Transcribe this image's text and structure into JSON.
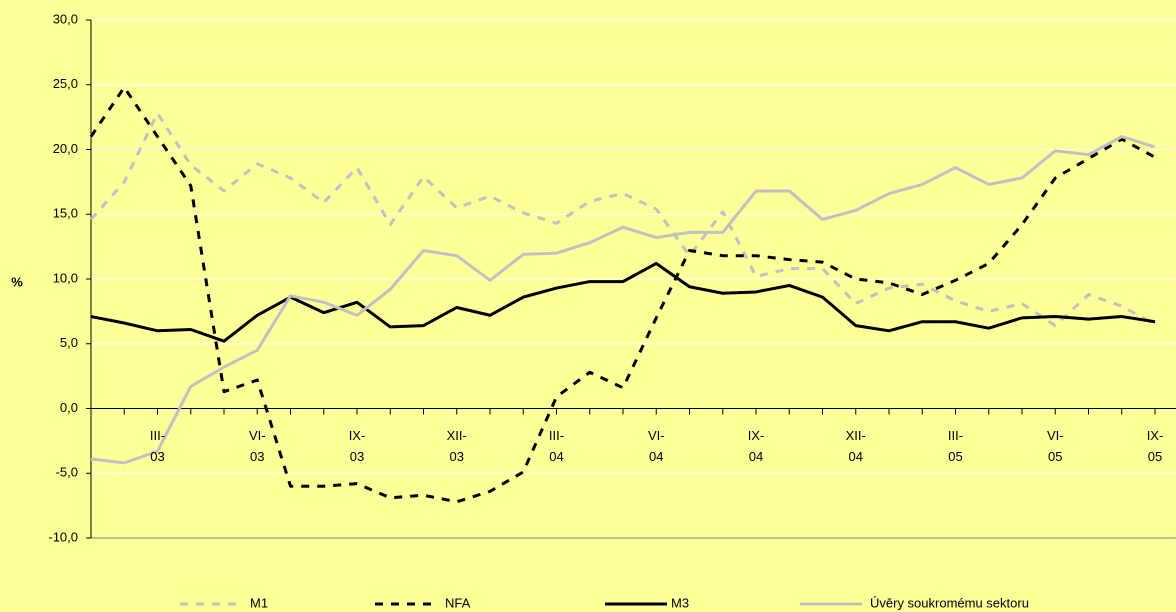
{
  "chart_data": {
    "type": "line",
    "y_label": "%",
    "categories": [
      null,
      null,
      "III-\n03",
      null,
      null,
      "VI-\n03",
      null,
      null,
      "IX-\n03",
      null,
      null,
      "XII-\n03",
      null,
      null,
      "III-\n04",
      null,
      null,
      "VI-\n04",
      null,
      null,
      "IX-\n04",
      null,
      null,
      "XII-\n04",
      null,
      null,
      "III-\n05",
      null,
      null,
      "VI-\n05",
      null,
      null,
      "IX-\n05"
    ],
    "ylim": [
      -10,
      30
    ],
    "yticks": [
      {
        "value": -10,
        "label": "-10,0"
      },
      {
        "value": -5,
        "label": "-5,0"
      },
      {
        "value": 0,
        "label": "0,0"
      },
      {
        "value": 5,
        "label": "5,0"
      },
      {
        "value": 10,
        "label": "10,0"
      },
      {
        "value": 15,
        "label": "15,0"
      },
      {
        "value": 20,
        "label": "20,0"
      },
      {
        "value": 25,
        "label": "25,0"
      },
      {
        "value": 30,
        "label": "30,0"
      }
    ],
    "grid": true,
    "legend": "bottom",
    "series": [
      {
        "name": "M1",
        "color": "#c0c0c0",
        "style": "dashed",
        "values": [
          14.6,
          17.5,
          22.8,
          18.8,
          16.8,
          18.9,
          17.8,
          15.9,
          18.6,
          14.2,
          17.9,
          15.5,
          16.4,
          15.1,
          14.3,
          16.0,
          16.6,
          15.4,
          11.8,
          15.2,
          10.2,
          10.8,
          10.8,
          8.1,
          9.3,
          9.6,
          8.3,
          7.5,
          8.1,
          6.4,
          8.8,
          7.9,
          6.5
        ]
      },
      {
        "name": "NFA",
        "color": "#000000",
        "style": "dashed",
        "values": [
          21.0,
          24.8,
          21.0,
          17.2,
          1.3,
          2.2,
          -6.0,
          -6.0,
          -5.8,
          -6.9,
          -6.7,
          -7.2,
          -6.4,
          -4.9,
          0.9,
          2.8,
          1.6,
          7.0,
          12.2,
          11.8,
          11.8,
          11.5,
          11.3,
          10.0,
          9.7,
          8.8,
          9.9,
          11.2,
          14.2,
          17.8,
          19.3,
          20.8,
          19.4
        ]
      },
      {
        "name": "M3",
        "color": "#000000",
        "style": "solid",
        "values": [
          7.1,
          6.6,
          6.0,
          6.1,
          5.2,
          7.2,
          8.6,
          7.4,
          8.2,
          6.3,
          6.4,
          7.8,
          7.2,
          8.6,
          9.3,
          9.8,
          9.8,
          11.2,
          9.4,
          8.9,
          9.0,
          9.5,
          8.6,
          6.4,
          6.0,
          6.7,
          6.7,
          6.2,
          7.0,
          7.1,
          6.9,
          7.1,
          6.7
        ]
      },
      {
        "name": "Úvěry soukromému sektoru",
        "color": "#c0c0c0",
        "style": "solid",
        "values": [
          -3.9,
          -4.2,
          -3.3,
          1.7,
          3.2,
          4.5,
          8.7,
          8.2,
          7.2,
          9.2,
          12.2,
          11.8,
          9.9,
          11.9,
          12.0,
          12.8,
          14.0,
          13.2,
          13.6,
          13.6,
          16.8,
          16.8,
          14.6,
          15.3,
          16.6,
          17.3,
          18.6,
          17.3,
          17.8,
          19.9,
          19.6,
          21.0,
          20.2
        ]
      }
    ]
  }
}
